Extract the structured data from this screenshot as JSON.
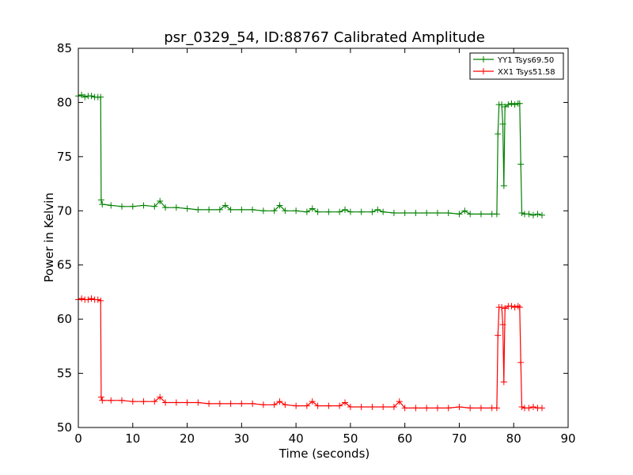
{
  "chart_data": {
    "type": "line",
    "title": "psr_0329_54, ID:88767 Calibrated Amplitude",
    "xlabel": "Time (seconds)",
    "ylabel": "Power in Kelvin",
    "xlim": [
      0,
      90
    ],
    "ylim": [
      50,
      85
    ],
    "xticks": [
      0,
      10,
      20,
      30,
      40,
      50,
      60,
      70,
      80,
      90
    ],
    "yticks": [
      50,
      55,
      60,
      65,
      70,
      75,
      80,
      85
    ],
    "grid": false,
    "legend_position": "top-right",
    "series": [
      {
        "name": "YY1 Tsys69.50",
        "color": "#008000",
        "marker": "+",
        "points": [
          [
            0.0,
            80.6
          ],
          [
            0.6,
            80.7
          ],
          [
            1.2,
            80.5
          ],
          [
            1.8,
            80.6
          ],
          [
            2.4,
            80.6
          ],
          [
            3.0,
            80.5
          ],
          [
            3.6,
            80.5
          ],
          [
            4.1,
            80.5
          ],
          [
            4.2,
            71.0
          ],
          [
            4.4,
            70.6
          ],
          [
            6,
            70.5
          ],
          [
            8,
            70.4
          ],
          [
            10,
            70.4
          ],
          [
            12,
            70.5
          ],
          [
            14,
            70.4
          ],
          [
            15,
            70.9
          ],
          [
            16,
            70.3
          ],
          [
            18,
            70.3
          ],
          [
            20,
            70.2
          ],
          [
            22,
            70.1
          ],
          [
            24,
            70.1
          ],
          [
            26,
            70.1
          ],
          [
            27,
            70.5
          ],
          [
            28,
            70.1
          ],
          [
            30,
            70.1
          ],
          [
            32,
            70.1
          ],
          [
            34,
            70.0
          ],
          [
            36,
            70.0
          ],
          [
            37,
            70.5
          ],
          [
            38,
            70.0
          ],
          [
            40,
            70.0
          ],
          [
            42,
            69.9
          ],
          [
            43,
            70.2
          ],
          [
            44,
            69.9
          ],
          [
            46,
            69.9
          ],
          [
            48,
            69.9
          ],
          [
            49,
            70.1
          ],
          [
            50,
            69.9
          ],
          [
            52,
            69.9
          ],
          [
            54,
            69.9
          ],
          [
            55,
            70.1
          ],
          [
            56,
            69.9
          ],
          [
            58,
            69.8
          ],
          [
            60,
            69.8
          ],
          [
            62,
            69.8
          ],
          [
            64,
            69.8
          ],
          [
            66,
            69.8
          ],
          [
            68,
            69.8
          ],
          [
            70,
            69.7
          ],
          [
            71,
            70.0
          ],
          [
            72,
            69.7
          ],
          [
            74,
            69.7
          ],
          [
            76,
            69.7
          ],
          [
            76.9,
            69.7
          ],
          [
            77.1,
            77.1
          ],
          [
            77.3,
            79.8
          ],
          [
            77.8,
            79.8
          ],
          [
            78.0,
            78.0
          ],
          [
            78.2,
            72.3
          ],
          [
            78.4,
            79.6
          ],
          [
            79.0,
            79.8
          ],
          [
            79.6,
            79.9
          ],
          [
            80.2,
            79.8
          ],
          [
            80.8,
            79.9
          ],
          [
            81.1,
            79.9
          ],
          [
            81.3,
            74.3
          ],
          [
            81.5,
            69.8
          ],
          [
            82.0,
            69.7
          ],
          [
            82.8,
            69.7
          ],
          [
            83.6,
            69.6
          ],
          [
            84.4,
            69.7
          ],
          [
            85.2,
            69.6
          ]
        ]
      },
      {
        "name": "XX1 Tsys51.58",
        "color": "#ff0000",
        "marker": "+",
        "points": [
          [
            0.0,
            61.8
          ],
          [
            0.6,
            61.9
          ],
          [
            1.2,
            61.8
          ],
          [
            1.8,
            61.8
          ],
          [
            2.4,
            61.9
          ],
          [
            3.0,
            61.8
          ],
          [
            3.6,
            61.8
          ],
          [
            4.1,
            61.7
          ],
          [
            4.2,
            52.8
          ],
          [
            4.4,
            52.5
          ],
          [
            6,
            52.5
          ],
          [
            8,
            52.5
          ],
          [
            10,
            52.4
          ],
          [
            12,
            52.4
          ],
          [
            14,
            52.4
          ],
          [
            15,
            52.8
          ],
          [
            16,
            52.3
          ],
          [
            18,
            52.3
          ],
          [
            20,
            52.3
          ],
          [
            22,
            52.3
          ],
          [
            24,
            52.2
          ],
          [
            26,
            52.2
          ],
          [
            28,
            52.2
          ],
          [
            30,
            52.2
          ],
          [
            32,
            52.2
          ],
          [
            34,
            52.1
          ],
          [
            36,
            52.1
          ],
          [
            37,
            52.4
          ],
          [
            38,
            52.1
          ],
          [
            40,
            52.0
          ],
          [
            42,
            52.0
          ],
          [
            43,
            52.4
          ],
          [
            44,
            52.0
          ],
          [
            46,
            52.0
          ],
          [
            48,
            52.0
          ],
          [
            49,
            52.3
          ],
          [
            50,
            51.9
          ],
          [
            52,
            51.9
          ],
          [
            54,
            51.9
          ],
          [
            56,
            51.9
          ],
          [
            58,
            51.9
          ],
          [
            59,
            52.4
          ],
          [
            60,
            51.8
          ],
          [
            62,
            51.8
          ],
          [
            64,
            51.8
          ],
          [
            66,
            51.8
          ],
          [
            68,
            51.8
          ],
          [
            70,
            51.9
          ],
          [
            72,
            51.8
          ],
          [
            74,
            51.8
          ],
          [
            76,
            51.8
          ],
          [
            76.9,
            51.8
          ],
          [
            77.1,
            58.5
          ],
          [
            77.3,
            61.1
          ],
          [
            77.8,
            61.1
          ],
          [
            78.0,
            59.5
          ],
          [
            78.2,
            54.2
          ],
          [
            78.4,
            61.0
          ],
          [
            79.0,
            61.2
          ],
          [
            79.6,
            61.2
          ],
          [
            80.2,
            61.1
          ],
          [
            80.8,
            61.2
          ],
          [
            81.1,
            61.1
          ],
          [
            81.3,
            56.0
          ],
          [
            81.5,
            51.9
          ],
          [
            82.0,
            51.8
          ],
          [
            82.8,
            51.8
          ],
          [
            83.6,
            51.9
          ],
          [
            84.4,
            51.8
          ],
          [
            85.2,
            51.8
          ]
        ]
      }
    ]
  }
}
